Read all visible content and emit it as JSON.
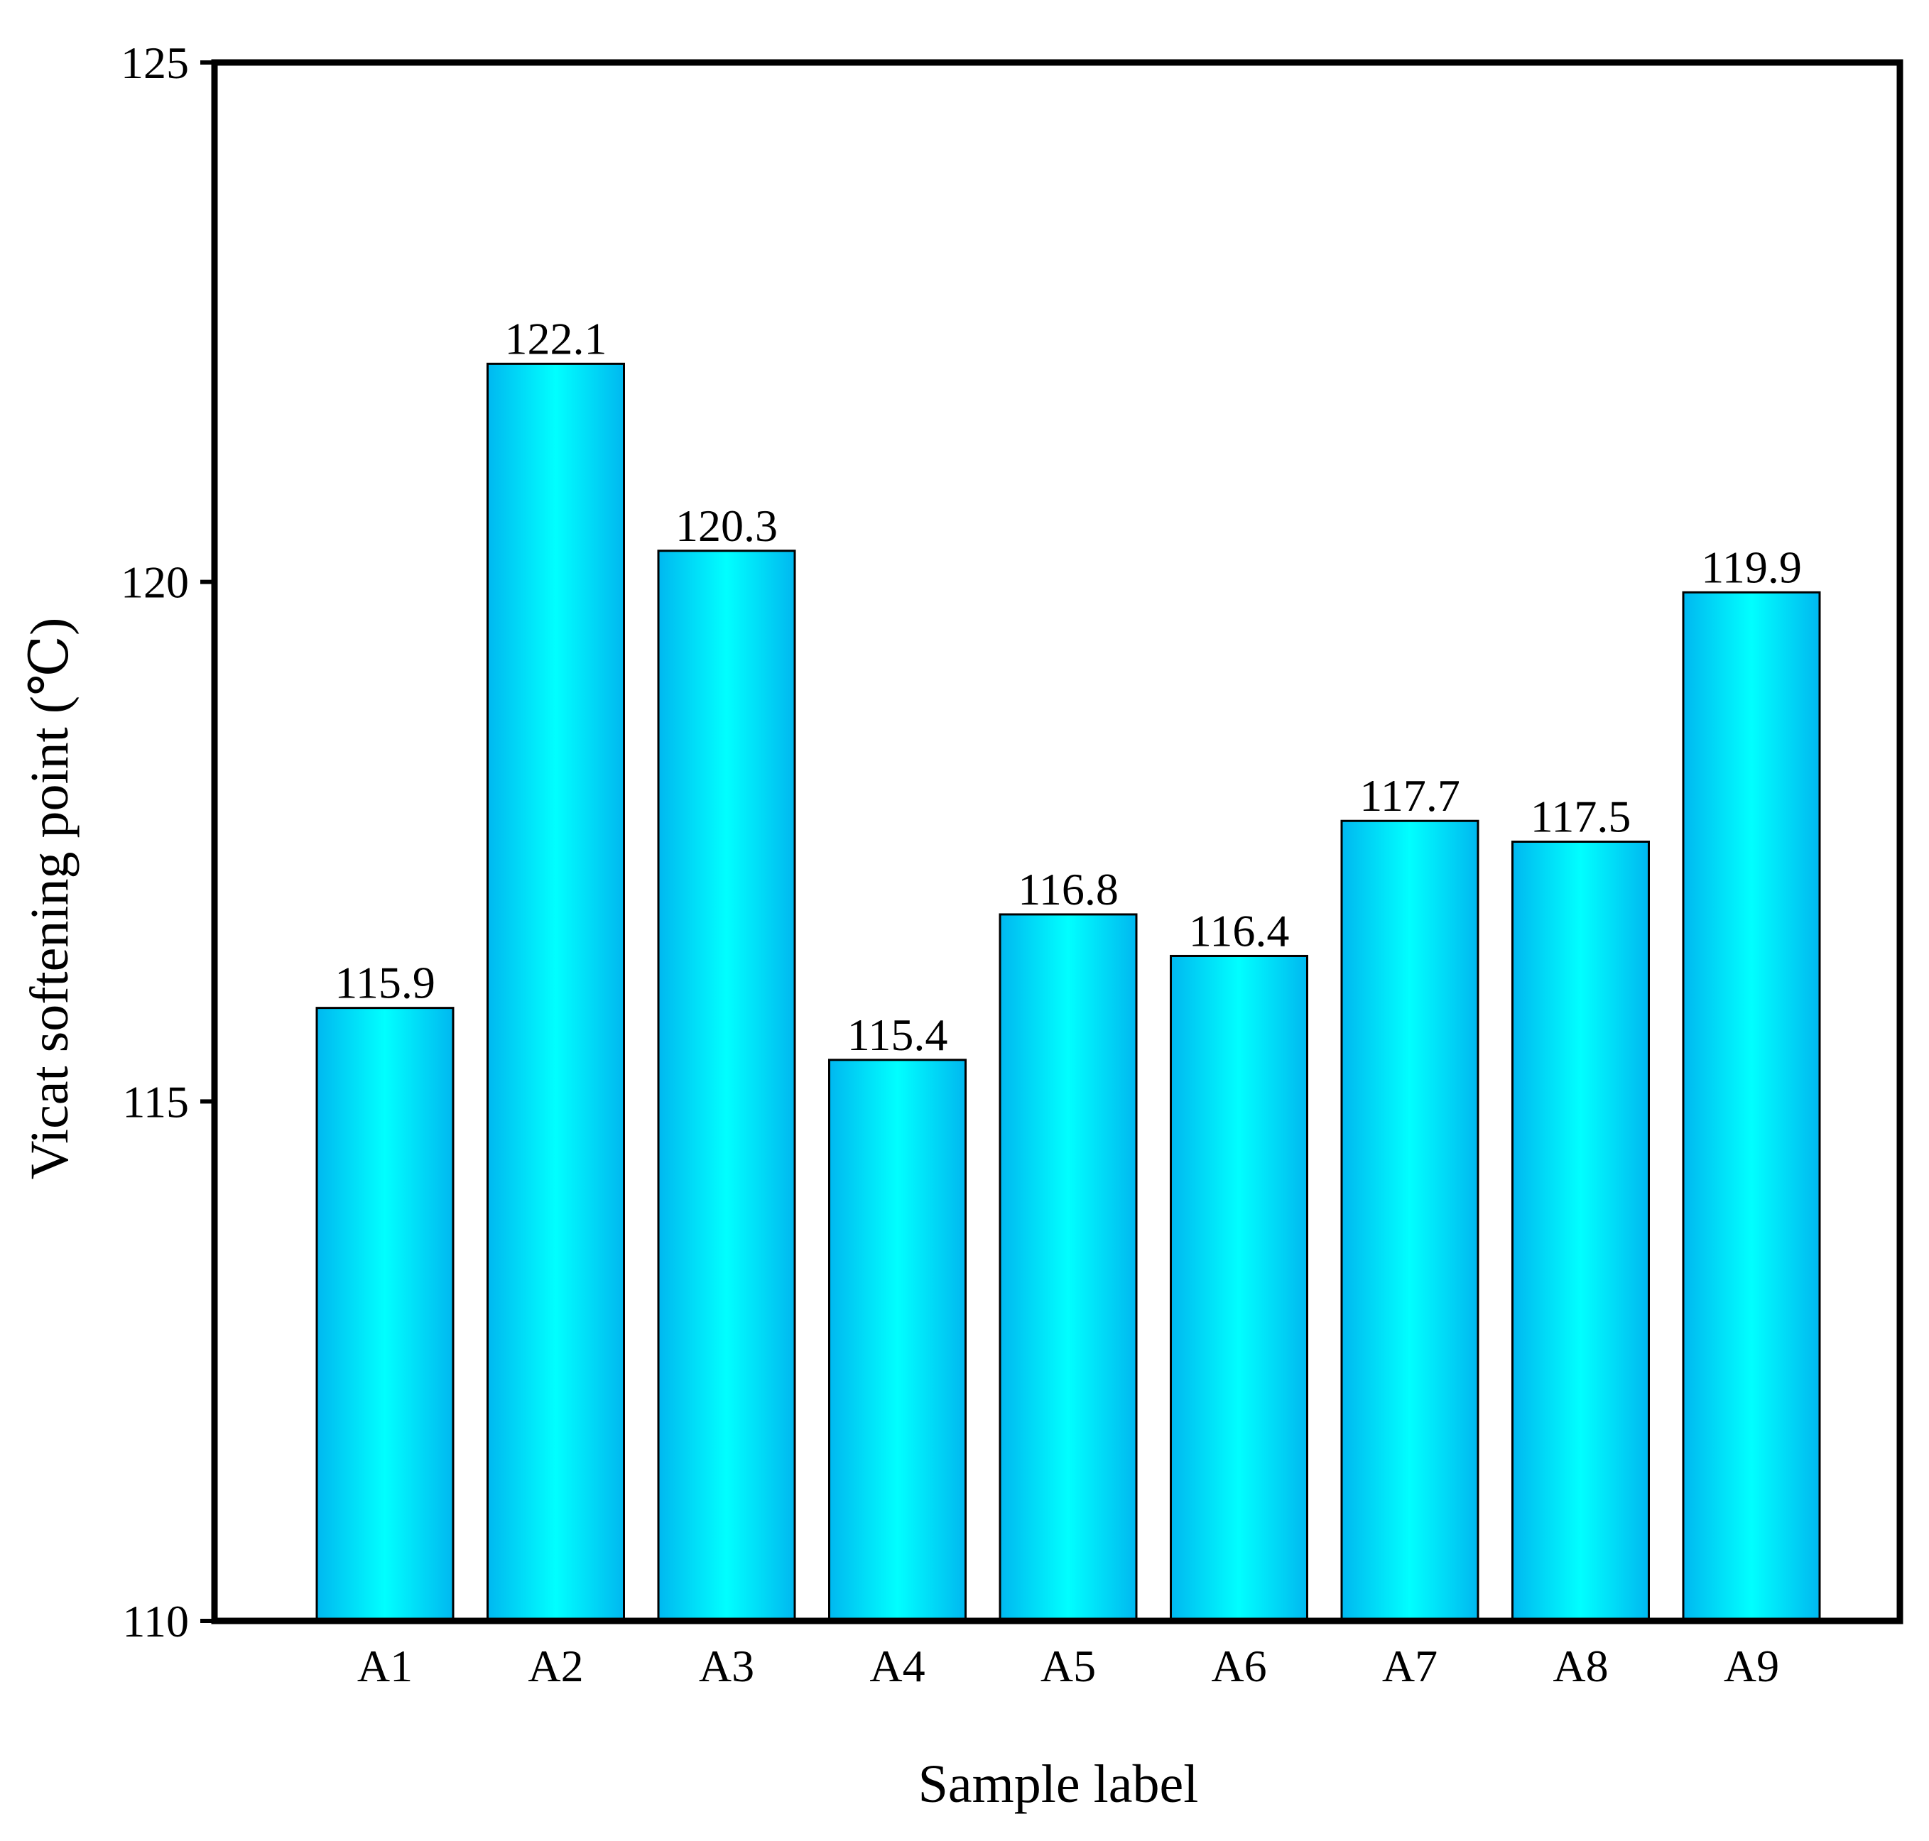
{
  "chart_data": {
    "type": "bar",
    "title": "",
    "xlabel": "Sample label",
    "ylabel": "Vicat softening point (℃)",
    "categories": [
      "A1",
      "A2",
      "A3",
      "A4",
      "A5",
      "A6",
      "A7",
      "A8",
      "A9"
    ],
    "values": [
      115.9,
      122.1,
      120.3,
      115.4,
      116.8,
      116.4,
      117.7,
      117.5,
      119.9
    ],
    "value_labels": [
      "115.9",
      "122.1",
      "120.3",
      "115.4",
      "116.8",
      "116.4",
      "117.7",
      "117.5",
      "119.9"
    ],
    "ylim": [
      110,
      125
    ],
    "yticks": [
      110,
      115,
      120,
      125
    ],
    "ytick_labels": [
      "110",
      "115",
      "120",
      "125"
    ],
    "grid": false,
    "legend": "none",
    "colors": {
      "bar_edge": "#00b8f0",
      "bar_center": "#00ffff",
      "bar_outline": "#000000",
      "axis": "#000000"
    }
  }
}
